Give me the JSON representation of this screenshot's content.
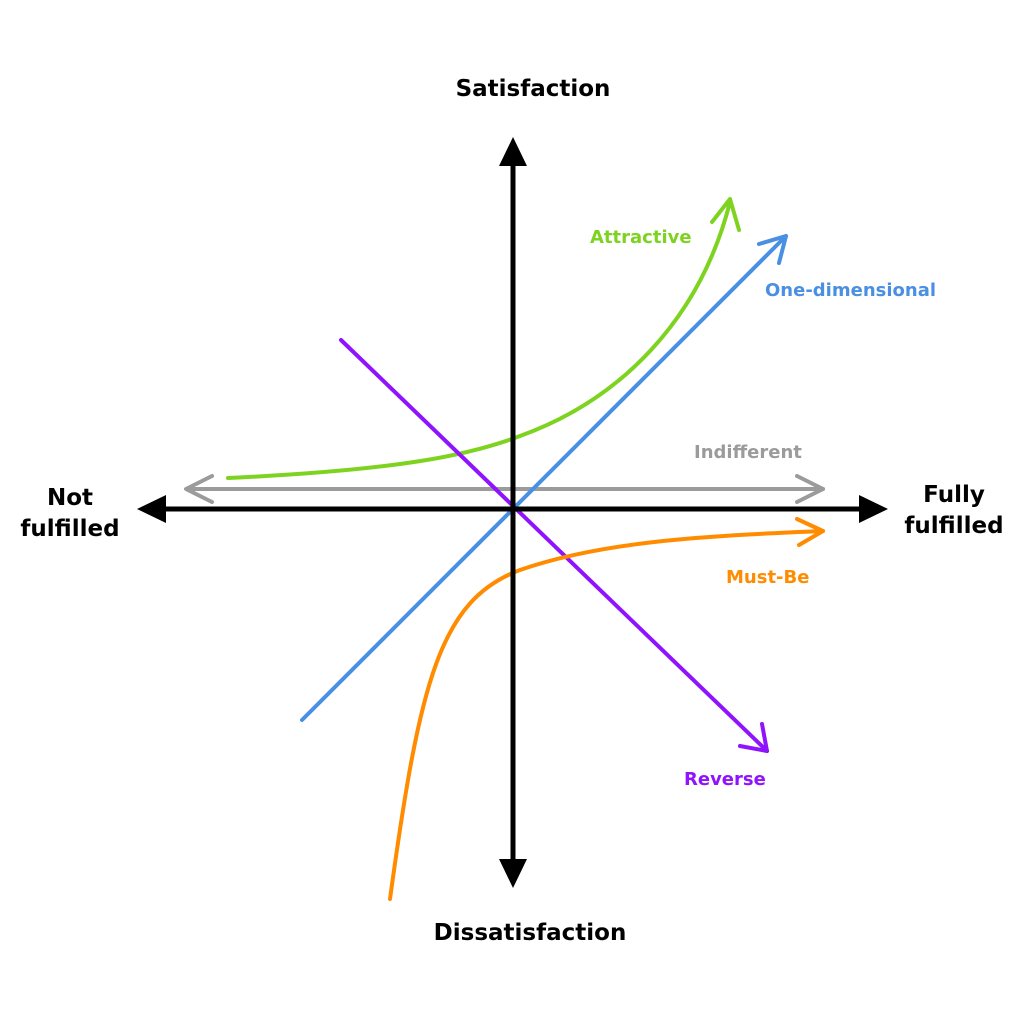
{
  "axes": {
    "top": "Satisfaction",
    "bottom": "Dissatisfaction",
    "left_line1": "Not",
    "left_line2": "fulfilled",
    "right_line1": "Fully",
    "right_line2": "fulfilled"
  },
  "curves": [
    {
      "label": "Attractive",
      "color": "#7ed321"
    },
    {
      "label": "One-dimensional",
      "color": "#4a90e2"
    },
    {
      "label": "Indifferent",
      "color": "#9b9b9b"
    },
    {
      "label": "Must-Be",
      "color": "#ff8c00"
    },
    {
      "label": "Reverse",
      "color": "#9013fe"
    }
  ]
}
